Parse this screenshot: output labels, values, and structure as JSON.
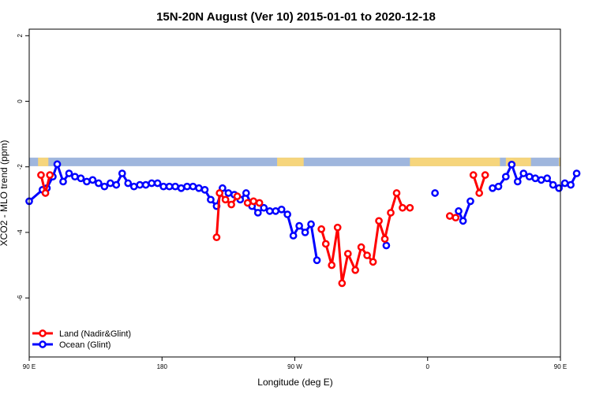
{
  "chart_data": {
    "type": "line",
    "title": "15N-20N August (Ver 10)   2015-01-01 to 2020-12-18",
    "xlabel": "Longitude (deg E)",
    "ylabel": "XCO2 - MLO trend (ppm)",
    "xlim": [
      90,
      450
    ],
    "ylim": [
      -7.8,
      2.2
    ],
    "x_ticks": [
      {
        "value": 90,
        "label": "90 E"
      },
      {
        "value": 180,
        "label": "180"
      },
      {
        "value": 270,
        "label": "90 W"
      },
      {
        "value": 360,
        "label": "0"
      },
      {
        "value": 450,
        "label": "90 E"
      },
      {
        "value": 540,
        "label": "180"
      }
    ],
    "y_ticks": [
      {
        "value": 2,
        "label": "2"
      },
      {
        "value": 0,
        "label": "0"
      },
      {
        "value": -2,
        "label": "-2"
      },
      {
        "value": -4,
        "label": "-4"
      },
      {
        "value": -6,
        "label": "-6"
      }
    ],
    "grid": false,
    "legend_position": "bottom-left",
    "land_ocean_band": {
      "y_range": [
        -1.98,
        -1.72
      ],
      "ocean_color": "#9fb6dd",
      "land_color": "#f6d57c",
      "land_spans": [
        [
          96,
          103
        ],
        [
          258,
          276
        ],
        [
          348,
          409
        ],
        [
          413,
          430
        ],
        [
          449,
          466
        ],
        [
          505,
          518
        ],
        [
          540,
          547
        ]
      ]
    },
    "series": [
      {
        "name": "Ocean (Glint)",
        "color": "#0000ff",
        "segments": [
          [
            [
              90,
              -3.05
            ],
            [
              99,
              -2.7
            ],
            [
              102,
              -2.65
            ],
            [
              106,
              -2.3
            ],
            [
              109,
              -1.92
            ],
            [
              113,
              -2.45
            ],
            [
              117,
              -2.2
            ],
            [
              121,
              -2.3
            ],
            [
              125,
              -2.35
            ],
            [
              129,
              -2.45
            ],
            [
              133,
              -2.4
            ],
            [
              137,
              -2.5
            ],
            [
              141,
              -2.6
            ],
            [
              145,
              -2.5
            ],
            [
              149,
              -2.55
            ],
            [
              153,
              -2.2
            ],
            [
              157,
              -2.5
            ],
            [
              161,
              -2.6
            ],
            [
              165,
              -2.55
            ],
            [
              169,
              -2.55
            ],
            [
              173,
              -2.5
            ],
            [
              177,
              -2.5
            ],
            [
              181,
              -2.6
            ],
            [
              185,
              -2.6
            ],
            [
              189,
              -2.6
            ],
            [
              193,
              -2.65
            ],
            [
              197,
              -2.6
            ],
            [
              201,
              -2.6
            ],
            [
              205,
              -2.65
            ],
            [
              209,
              -2.7
            ],
            [
              213,
              -3.0
            ],
            [
              217,
              -3.2
            ],
            [
              221,
              -2.65
            ],
            [
              225,
              -2.8
            ],
            [
              229,
              -2.85
            ],
            [
              233,
              -3.0
            ],
            [
              237,
              -2.8
            ],
            [
              241,
              -3.2
            ],
            [
              245,
              -3.4
            ],
            [
              249,
              -3.25
            ],
            [
              253,
              -3.35
            ],
            [
              257,
              -3.35
            ],
            [
              261,
              -3.3
            ],
            [
              265,
              -3.45
            ],
            [
              269,
              -4.1
            ],
            [
              273,
              -3.8
            ],
            [
              277,
              -4.0
            ],
            [
              281,
              -3.75
            ],
            [
              285,
              -4.85
            ]
          ],
          [
            [
              332,
              -4.4
            ]
          ],
          [
            [
              365,
              -2.8
            ]
          ],
          [
            [
              381,
              -3.35
            ],
            [
              384,
              -3.65
            ],
            [
              389,
              -3.05
            ]
          ],
          [
            [
              404,
              -2.65
            ],
            [
              408,
              -2.6
            ],
            [
              413,
              -2.3
            ],
            [
              417,
              -1.93
            ],
            [
              421,
              -2.45
            ],
            [
              425,
              -2.2
            ],
            [
              429,
              -2.3
            ],
            [
              433,
              -2.35
            ],
            [
              437,
              -2.4
            ],
            [
              441,
              -2.35
            ],
            [
              445,
              -2.55
            ],
            [
              449,
              -2.65
            ],
            [
              453,
              -2.5
            ],
            [
              457,
              -2.55
            ],
            [
              461,
              -2.2
            ]
          ]
        ]
      },
      {
        "name": "Land (Nadir&Glint)",
        "color": "#ff0000",
        "segments": [
          [
            [
              98,
              -2.25
            ],
            [
              101,
              -2.8
            ],
            [
              104,
              -2.25
            ]
          ],
          [
            [
              217,
              -4.15
            ],
            [
              219,
              -2.8
            ],
            [
              223,
              -3.0
            ],
            [
              227,
              -3.15
            ],
            [
              231,
              -2.9
            ]
          ],
          [
            [
              238,
              -3.1
            ],
            [
              242,
              -3.05
            ],
            [
              246,
              -3.1
            ]
          ],
          [
            [
              288,
              -3.9
            ],
            [
              291,
              -4.35
            ],
            [
              295,
              -5.0
            ],
            [
              299,
              -3.85
            ],
            [
              302,
              -5.55
            ],
            [
              306,
              -4.65
            ],
            [
              311,
              -5.15
            ],
            [
              315,
              -4.45
            ],
            [
              319,
              -4.7
            ],
            [
              323,
              -4.9
            ],
            [
              327,
              -3.65
            ],
            [
              331,
              -4.2
            ],
            [
              335,
              -3.4
            ],
            [
              339,
              -2.8
            ],
            [
              343,
              -3.25
            ],
            [
              348,
              -3.25
            ]
          ],
          [
            [
              375,
              -3.5
            ],
            [
              379,
              -3.55
            ]
          ],
          [
            [
              391,
              -2.25
            ],
            [
              395,
              -2.8
            ],
            [
              399,
              -2.25
            ]
          ]
        ]
      }
    ]
  }
}
